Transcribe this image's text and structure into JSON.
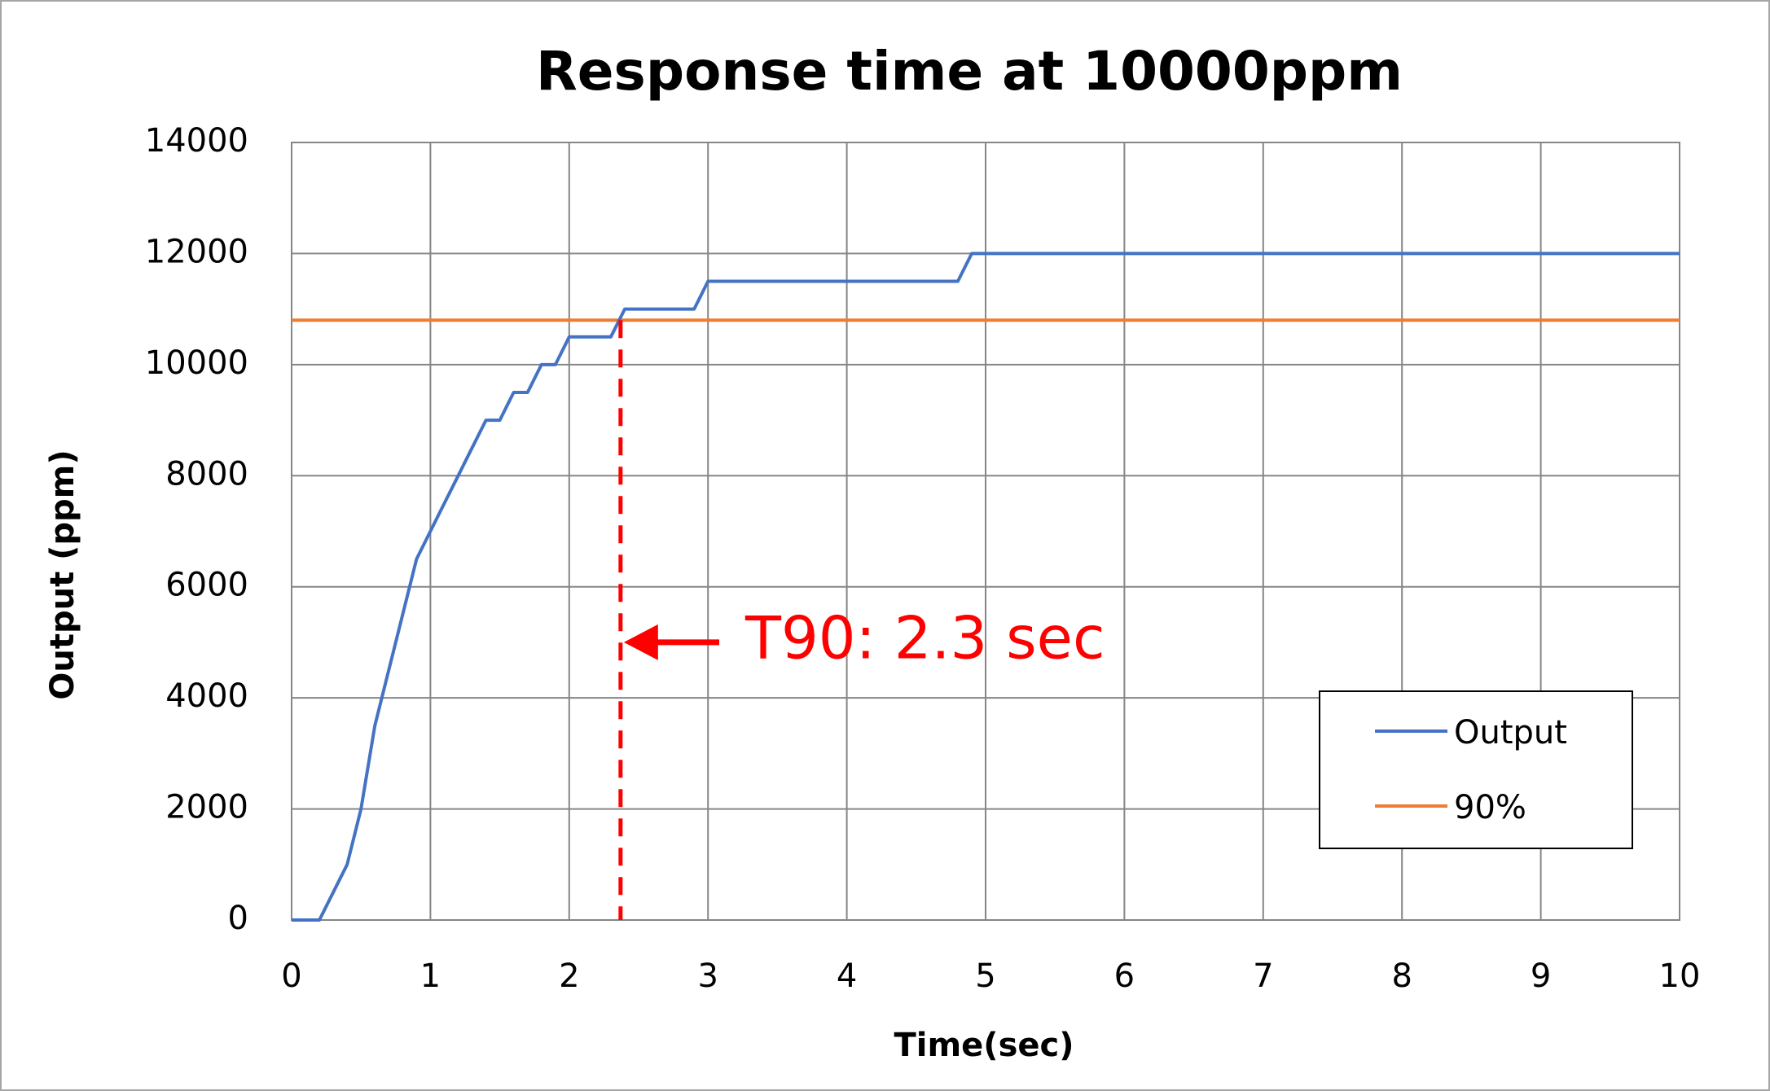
{
  "chart_data": {
    "type": "line",
    "title": "Response time at 10000ppm",
    "xlabel": "Time(sec)",
    "ylabel": "Output (ppm)",
    "xlim": [
      0,
      10
    ],
    "ylim": [
      0,
      14000
    ],
    "x_ticks": [
      "0",
      "1",
      "2",
      "3",
      "4",
      "5",
      "6",
      "7",
      "8",
      "9",
      "10"
    ],
    "y_ticks": [
      "0",
      "2000",
      "4000",
      "6000",
      "8000",
      "10000",
      "12000",
      "14000"
    ],
    "grid": true,
    "legend_position": "bottom-right",
    "series": [
      {
        "name": "Output",
        "color": "#4472c4",
        "x": [
          0,
          0.2,
          0.4,
          0.5,
          0.6,
          0.9,
          1.0,
          1.1,
          1.2,
          1.3,
          1.4,
          1.5,
          1.6,
          1.7,
          1.8,
          1.9,
          2.0,
          2.3,
          2.4,
          2.9,
          3.0,
          4.8,
          4.9,
          10
        ],
        "y": [
          0,
          0,
          1000,
          2000,
          3500,
          6500,
          7000,
          7500,
          8000,
          8500,
          9000,
          9000,
          9500,
          9500,
          10000,
          10000,
          10500,
          10500,
          11000,
          11000,
          11500,
          11500,
          12000,
          12000
        ]
      },
      {
        "name": "90%",
        "color": "#ed7d31",
        "x": [
          0,
          10
        ],
        "y": [
          10800,
          10800
        ]
      }
    ],
    "annotation": {
      "text": "T90: 2.3 sec",
      "x": 2.37,
      "y_arrow": 5000,
      "color": "#ff0000"
    }
  }
}
